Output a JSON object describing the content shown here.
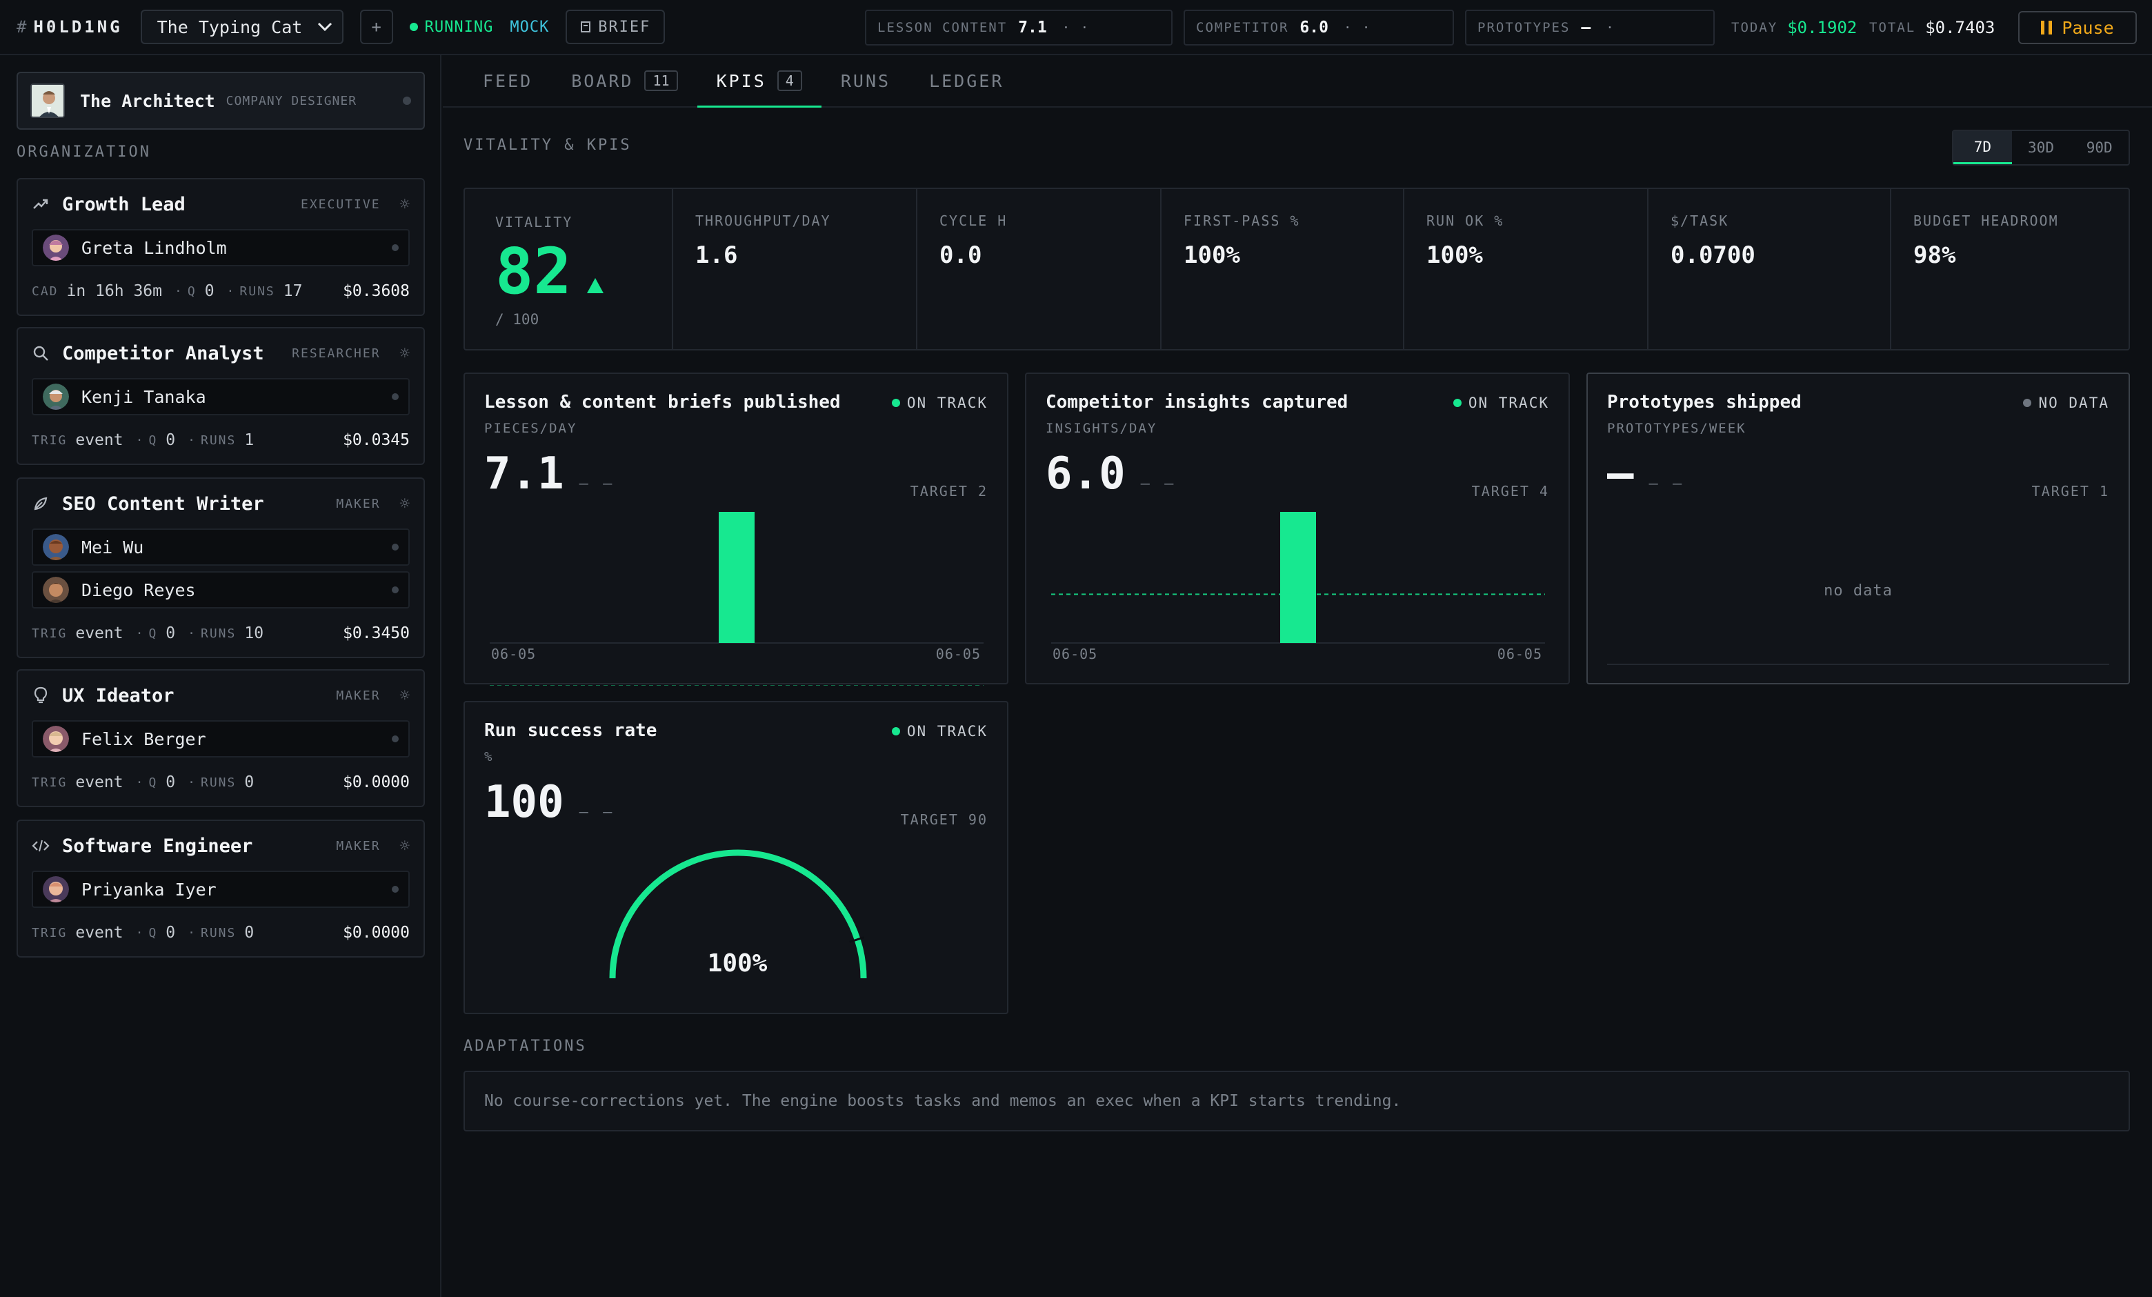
{
  "topbar": {
    "logo": "H0LD1NG",
    "logo_prefix": "#",
    "company": "The Typing Cat",
    "add_label": "+",
    "status": "RUNNING",
    "mode": "MOCK",
    "brief": "BRIEF",
    "metrics": [
      {
        "label": "LESSON CONTENT",
        "value": "7.1",
        "trail": "·    ·"
      },
      {
        "label": "COMPETITOR",
        "value": "6.0",
        "trail": "·    ·"
      },
      {
        "label": "PROTOTYPES",
        "value": "—",
        "trail": "·"
      }
    ],
    "today_label": "TODAY",
    "today_value": "$0.1902",
    "total_label": "TOTAL",
    "total_value": "$0.7403",
    "pause_label": "Pause"
  },
  "sidebar": {
    "architect": {
      "name": "The Architect",
      "role": "COMPANY DESIGNER"
    },
    "org_label": "ORGANIZATION",
    "roles": [
      {
        "title": "Growth Lead",
        "type": "EXECUTIVE",
        "icon": "trending-up-icon",
        "people": [
          "Greta Lindholm"
        ],
        "footer": {
          "k1": "CAD",
          "v1": "in 16h 36m",
          "k2": "Q",
          "v2": "0",
          "k3": "RUNS",
          "v3": "17",
          "cost": "$0.3608"
        }
      },
      {
        "title": "Competitor Analyst",
        "type": "RESEARCHER",
        "icon": "search-icon",
        "people": [
          "Kenji Tanaka"
        ],
        "footer": {
          "k1": "TRIG",
          "v1": "event",
          "k2": "Q",
          "v2": "0",
          "k3": "RUNS",
          "v3": "1",
          "cost": "$0.0345"
        }
      },
      {
        "title": "SEO Content Writer",
        "type": "MAKER",
        "icon": "feather-icon",
        "people": [
          "Mei Wu",
          "Diego Reyes"
        ],
        "footer": {
          "k1": "TRIG",
          "v1": "event",
          "k2": "Q",
          "v2": "0",
          "k3": "RUNS",
          "v3": "10",
          "cost": "$0.3450"
        }
      },
      {
        "title": "UX Ideator",
        "type": "MAKER",
        "icon": "lightbulb-icon",
        "people": [
          "Felix Berger"
        ],
        "footer": {
          "k1": "TRIG",
          "v1": "event",
          "k2": "Q",
          "v2": "0",
          "k3": "RUNS",
          "v3": "0",
          "cost": "$0.0000"
        }
      },
      {
        "title": "Software Engineer",
        "type": "MAKER",
        "icon": "code-icon",
        "people": [
          "Priyanka Iyer"
        ],
        "footer": {
          "k1": "TRIG",
          "v1": "event",
          "k2": "Q",
          "v2": "0",
          "k3": "RUNS",
          "v3": "0",
          "cost": "$0.0000"
        }
      }
    ]
  },
  "tabs": [
    {
      "label": "FEED"
    },
    {
      "label": "BOARD",
      "count": "11"
    },
    {
      "label": "KPIS",
      "count": "4",
      "active": true
    },
    {
      "label": "RUNS"
    },
    {
      "label": "LEDGER"
    }
  ],
  "kpis": {
    "section_title": "VITALITY & KPIS",
    "ranges": [
      "7D",
      "30D",
      "90D"
    ],
    "active_range": "7D",
    "vitality": {
      "label": "VITALITY",
      "value": "82",
      "max": "/ 100"
    },
    "stats": [
      {
        "label": "THROUGHPUT/DAY",
        "value": "1.6"
      },
      {
        "label": "CYCLE H",
        "value": "0.0"
      },
      {
        "label": "FIRST-PASS %",
        "value": "100%"
      },
      {
        "label": "RUN OK %",
        "value": "100%"
      },
      {
        "label": "$/TASK",
        "value": "0.0700"
      },
      {
        "label": "BUDGET HEADROOM",
        "value": "98%"
      }
    ],
    "panels": [
      {
        "title": "Lesson & content briefs published",
        "status": "ON TRACK",
        "unit": "PIECES/DAY",
        "value": "7.1",
        "dash": "— —",
        "target_label": "TARGET 2",
        "target": 2,
        "x_start": "06-05",
        "x_end": "06-05"
      },
      {
        "title": "Competitor insights captured",
        "status": "ON TRACK",
        "unit": "INSIGHTS/DAY",
        "value": "6.0",
        "dash": "— —",
        "target_label": "TARGET 4",
        "target": 4,
        "x_start": "06-05",
        "x_end": "06-05"
      },
      {
        "title": "Prototypes shipped",
        "status": "NO DATA",
        "unit": "PROTOTYPES/WEEK",
        "value": "—",
        "dash": "— —",
        "target_label": "TARGET 1",
        "empty": "no data"
      },
      {
        "title": "Run success rate",
        "status": "ON TRACK",
        "unit": "%",
        "value": "100",
        "dash": "— —",
        "target_label": "TARGET 90",
        "gauge_label": "100%",
        "gauge_value": 100,
        "gauge_target": 90
      }
    ],
    "adaptations_title": "ADAPTATIONS",
    "adaptations_text": "No course-corrections yet. The engine boosts tasks and memos an exec when a KPI starts trending."
  },
  "colors": {
    "accent": "#17e890",
    "mock": "#3fc3dc",
    "pause": "#f0a81a",
    "bg": "#0d1014"
  },
  "chart_data": [
    {
      "type": "bar",
      "title": "Lesson & content briefs published",
      "categories": [
        "06-05"
      ],
      "values": [
        7.1
      ],
      "target": 2
    },
    {
      "type": "bar",
      "title": "Competitor insights captured",
      "categories": [
        "06-05"
      ],
      "values": [
        6.0
      ],
      "target": 4
    }
  ]
}
